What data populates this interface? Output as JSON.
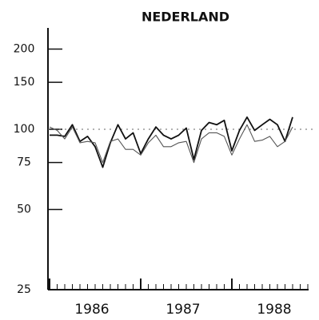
{
  "chart_data": {
    "type": "line",
    "title": "NEDERLAND",
    "categories": [
      null,
      null,
      null,
      null,
      null,
      null,
      "1986",
      null,
      null,
      null,
      null,
      null,
      null,
      null,
      null,
      null,
      null,
      null,
      "1987",
      null,
      null,
      null,
      null,
      null,
      null,
      null,
      null,
      null,
      null,
      null,
      "1988",
      null,
      null
    ],
    "series": [
      {
        "color": "#111111",
        "values": [
          95,
          95,
          94,
          104,
          90,
          94,
          86,
          72,
          89,
          104,
          92,
          97,
          81,
          92,
          102,
          95,
          92,
          95,
          101,
          77,
          99,
          106,
          104,
          108,
          83,
          99,
          111,
          99,
          104,
          109,
          104,
          90,
          111
        ]
      },
      {
        "color": "#555555",
        "values": [
          102,
          99,
          92,
          102,
          89,
          90,
          89,
          75,
          90,
          92,
          84,
          84,
          80,
          89,
          95,
          86,
          86,
          89,
          90,
          75,
          92,
          97,
          97,
          94,
          80,
          92,
          104,
          90,
          91,
          94,
          86,
          90,
          102
        ]
      }
    ],
    "yscale": "log",
    "ylim": [
      25,
      240
    ],
    "yticks": [
      25,
      50,
      75,
      100,
      150,
      200
    ],
    "reference_line": 100
  }
}
